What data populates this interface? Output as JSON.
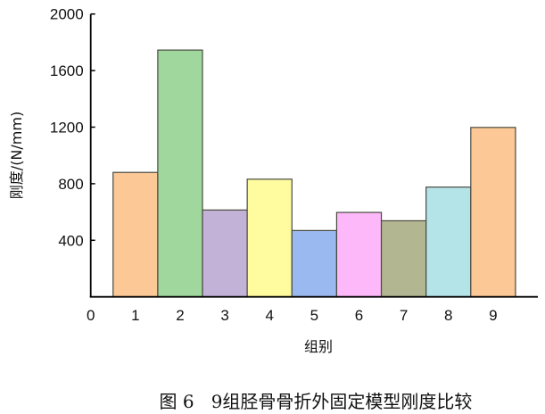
{
  "chart_data": {
    "type": "bar",
    "categories": [
      "1",
      "2",
      "3",
      "4",
      "5",
      "6",
      "7",
      "8",
      "9"
    ],
    "values": [
      880,
      1745,
      614,
      832,
      469,
      597,
      538,
      776,
      1198
    ],
    "colors": [
      "#fbc896",
      "#9fd79c",
      "#c2b2d8",
      "#fffb9f",
      "#9ab9f0",
      "#fcb8f8",
      "#b2b791",
      "#b4e3e8",
      "#fbc896"
    ],
    "title": "",
    "xlabel": "组别",
    "ylabel": "刚度/(N/mm)",
    "ylim": [
      0,
      2000
    ],
    "xlim": [
      0,
      10
    ],
    "yticks": [
      "400",
      "800",
      "1200",
      "1600",
      "2000"
    ],
    "xticks": [
      "0",
      "1",
      "2",
      "3",
      "4",
      "5",
      "6",
      "7",
      "8",
      "9"
    ],
    "grid": false,
    "caption": "图 6   9组胫骨骨折外固定模型刚度比较"
  }
}
